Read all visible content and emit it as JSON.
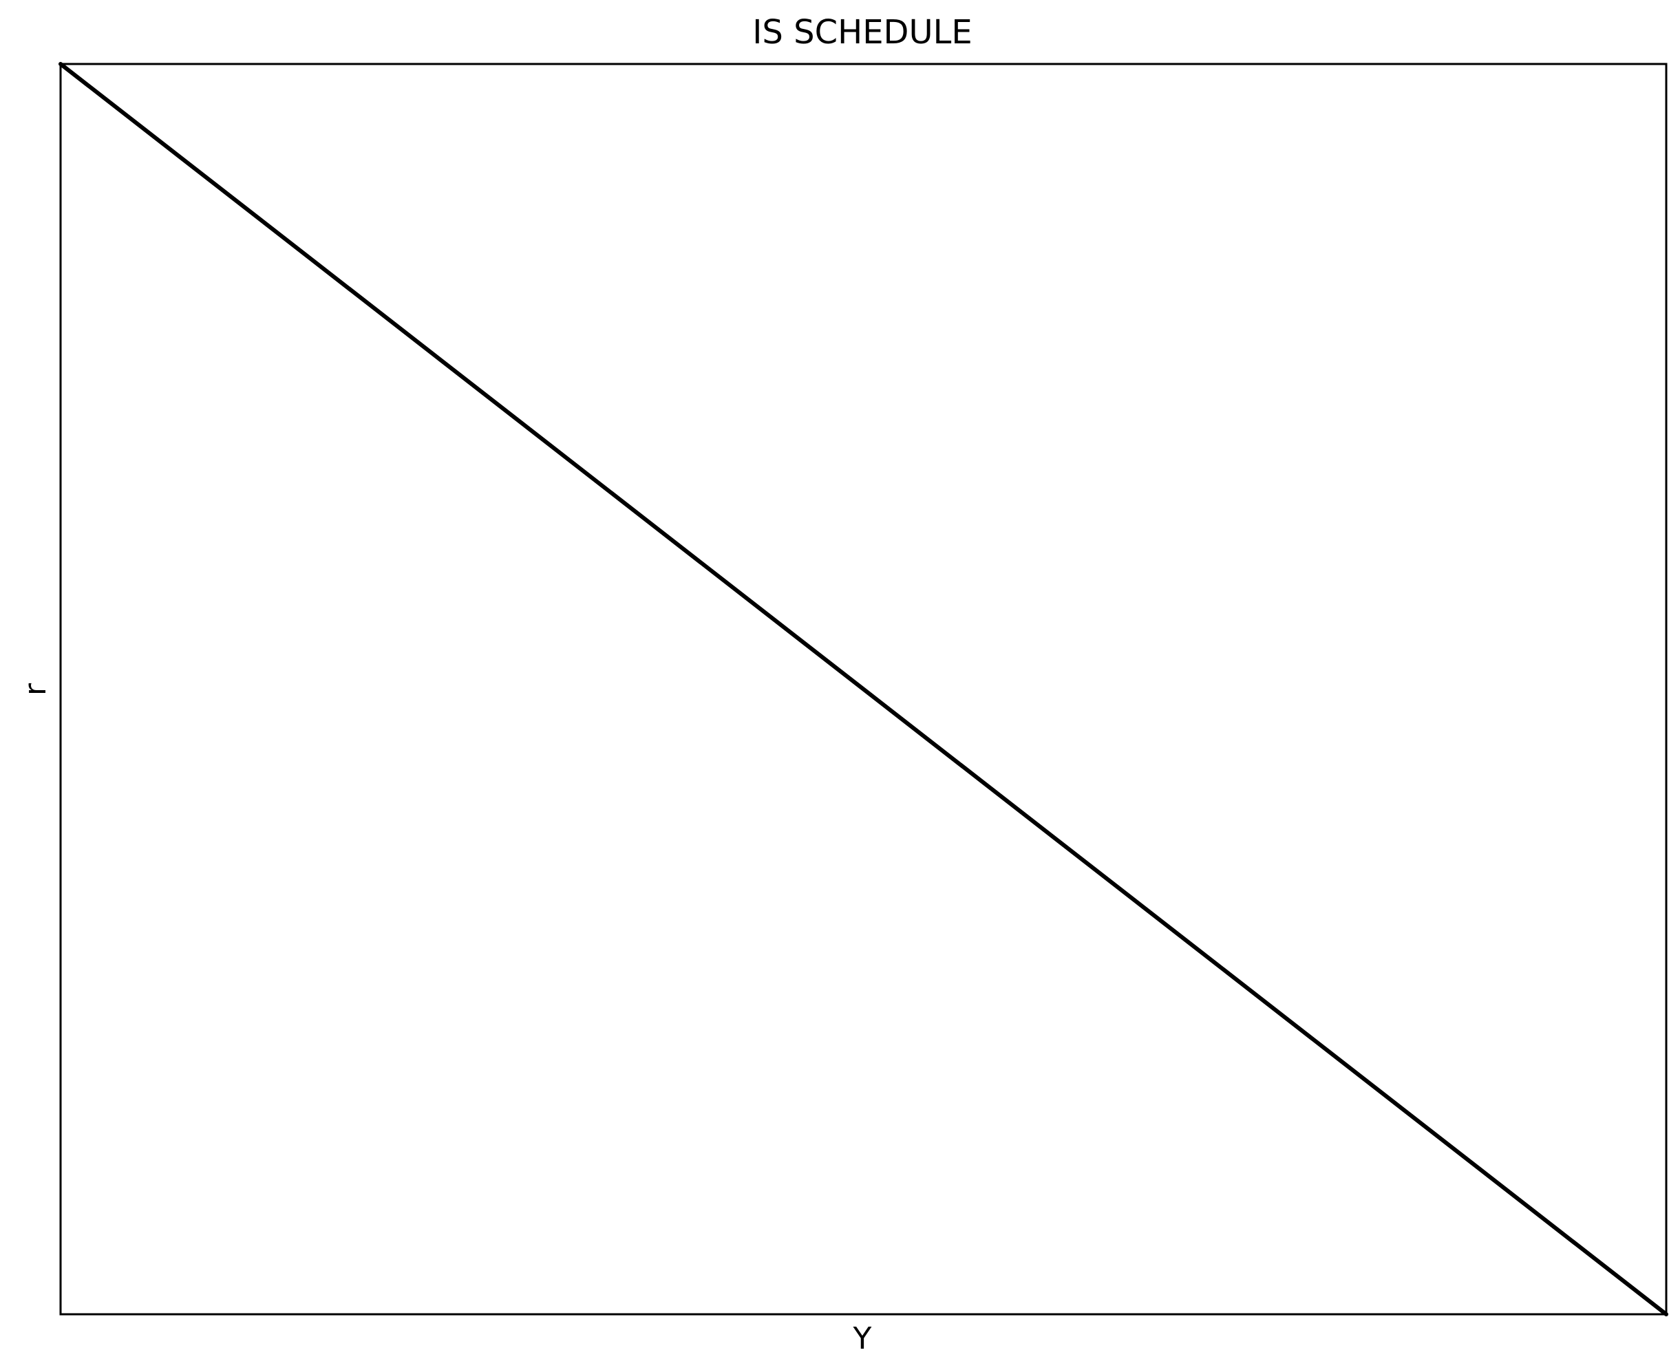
{
  "chart_data": {
    "type": "line",
    "title": "IS SCHEDULE",
    "xlabel": "Y",
    "ylabel": "r",
    "xlim": [
      0,
      1
    ],
    "ylim": [
      0,
      1
    ],
    "grid": false,
    "ticks": "none",
    "series": [
      {
        "x": [
          0,
          1
        ],
        "y": [
          1,
          0
        ],
        "color": "#000000"
      }
    ]
  }
}
